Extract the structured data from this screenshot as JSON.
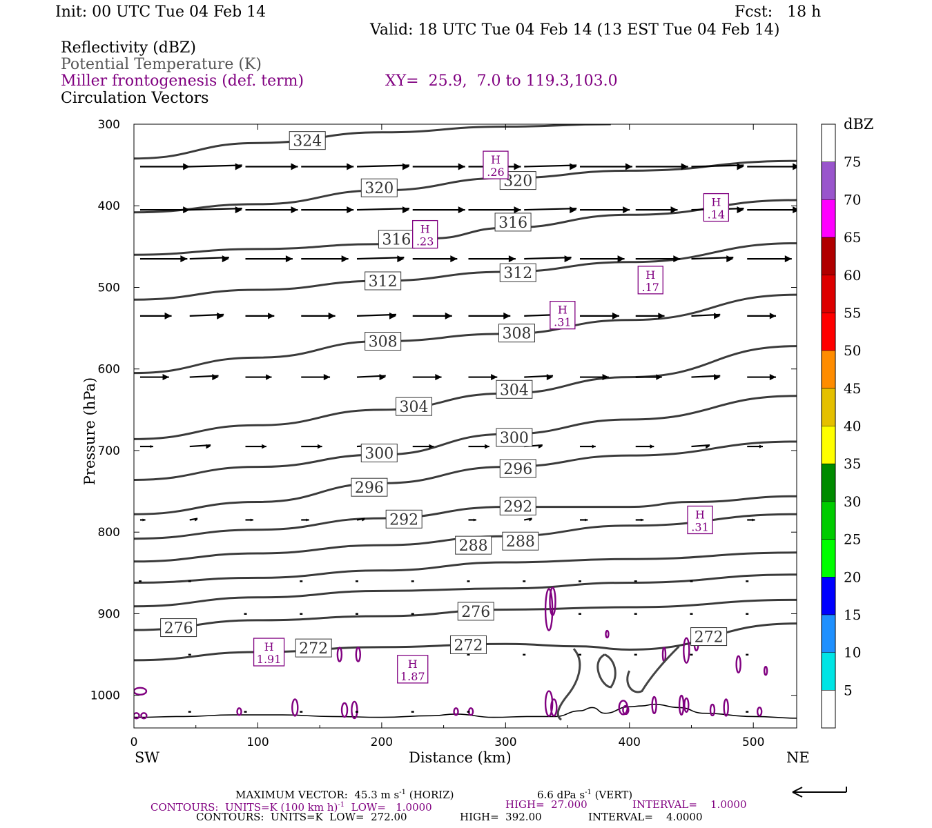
{
  "header": {
    "init": "Init: 00 UTC Tue 04 Feb 14",
    "fcst": "Fcst:   18 h",
    "valid": "Valid: 18 UTC Tue 04 Feb 14 (13 EST Tue 04 Feb 14)"
  },
  "fields": {
    "reflectivity": "Reflectivity (dBZ)",
    "theta": "Potential Temperature (K)",
    "frontogenesis": "Miller frontogenesis (def. term)",
    "xy": "XY=  25.9,  7.0 to 119.3,103.0",
    "vectors": "Circulation Vectors"
  },
  "colors": {
    "theta_line": "#3a3a3a",
    "frontogenesis": "#800080",
    "vectors": "#000000"
  },
  "chart_data": {
    "type": "line",
    "xlabel": "Distance (km)",
    "ylabel": "Pressure (hPa)",
    "xlim": [
      0,
      535
    ],
    "ylim": [
      1040,
      300
    ],
    "x_ticks": [
      "0",
      "100",
      "200",
      "300",
      "400",
      "500"
    ],
    "y_ticks": [
      "300",
      "400",
      "500",
      "600",
      "700",
      "800",
      "900",
      "1000"
    ],
    "x_end_labels": {
      "left": "SW",
      "right": "NE"
    },
    "isentropes": [
      {
        "theta": 324,
        "label": "324",
        "points": [
          [
            0,
            342
          ],
          [
            100,
            323
          ],
          [
            200,
            310
          ],
          [
            300,
            303
          ],
          [
            385,
            300
          ]
        ],
        "labels_at": [
          [
            140,
            320
          ]
        ]
      },
      {
        "theta": 320,
        "label": "320",
        "points": [
          [
            0,
            408
          ],
          [
            100,
            398
          ],
          [
            200,
            381
          ],
          [
            300,
            366
          ],
          [
            400,
            357
          ],
          [
            535,
            345
          ]
        ],
        "labels_at": [
          [
            198,
            378
          ],
          [
            310,
            369
          ]
        ]
      },
      {
        "theta": 316,
        "label": "316",
        "points": [
          [
            0,
            460
          ],
          [
            100,
            453
          ],
          [
            200,
            447
          ],
          [
            240,
            440
          ],
          [
            300,
            427
          ],
          [
            400,
            411
          ],
          [
            535,
            393
          ]
        ],
        "labels_at": [
          [
            212,
            441
          ],
          [
            306,
            420
          ]
        ]
      },
      {
        "theta": 312,
        "label": "312",
        "points": [
          [
            0,
            515
          ],
          [
            100,
            503
          ],
          [
            200,
            492
          ],
          [
            300,
            481
          ],
          [
            400,
            469
          ],
          [
            535,
            446
          ]
        ],
        "labels_at": [
          [
            201,
            492
          ],
          [
            310,
            482
          ]
        ]
      },
      {
        "theta": 308,
        "label": "308",
        "points": [
          [
            0,
            605
          ],
          [
            100,
            586
          ],
          [
            200,
            566
          ],
          [
            300,
            557
          ],
          [
            400,
            540
          ],
          [
            535,
            509
          ]
        ],
        "labels_at": [
          [
            201,
            566
          ],
          [
            309,
            556
          ]
        ]
      },
      {
        "theta": 304,
        "label": "304",
        "points": [
          [
            0,
            686
          ],
          [
            100,
            669
          ],
          [
            200,
            650
          ],
          [
            300,
            630
          ],
          [
            400,
            610
          ],
          [
            535,
            572
          ]
        ],
        "labels_at": [
          [
            226,
            646
          ],
          [
            307,
            625
          ]
        ]
      },
      {
        "theta": 300,
        "label": "300",
        "points": [
          [
            0,
            736
          ],
          [
            100,
            720
          ],
          [
            200,
            705
          ],
          [
            300,
            680
          ],
          [
            400,
            662
          ],
          [
            535,
            633
          ]
        ],
        "labels_at": [
          [
            198,
            703
          ],
          [
            307,
            684
          ]
        ]
      },
      {
        "theta": 296,
        "label": "296",
        "points": [
          [
            0,
            778
          ],
          [
            100,
            763
          ],
          [
            200,
            740
          ],
          [
            300,
            720
          ],
          [
            400,
            706
          ],
          [
            535,
            689
          ]
        ],
        "labels_at": [
          [
            190,
            745
          ],
          [
            310,
            722
          ]
        ]
      },
      {
        "theta": 292,
        "label": "292",
        "points": [
          [
            0,
            808
          ],
          [
            100,
            797
          ],
          [
            200,
            783
          ],
          [
            300,
            769
          ],
          [
            400,
            769
          ],
          [
            450,
            763
          ],
          [
            535,
            756
          ]
        ],
        "labels_at": [
          [
            218,
            784
          ],
          [
            310,
            768
          ]
        ]
      },
      {
        "theta": 288,
        "label": "288",
        "points": [
          [
            0,
            836
          ],
          [
            100,
            826
          ],
          [
            200,
            816
          ],
          [
            300,
            805
          ],
          [
            400,
            792
          ],
          [
            535,
            778
          ]
        ],
        "labels_at": [
          [
            274,
            816
          ],
          [
            312,
            811
          ]
        ]
      },
      {
        "theta": 284,
        "label": "",
        "points": [
          [
            0,
            862
          ],
          [
            100,
            856
          ],
          [
            200,
            847
          ],
          [
            300,
            837
          ],
          [
            400,
            833
          ],
          [
            535,
            825
          ]
        ],
        "labels_at": []
      },
      {
        "theta": 280,
        "label": "",
        "points": [
          [
            0,
            891
          ],
          [
            100,
            880
          ],
          [
            200,
            872
          ],
          [
            300,
            869
          ],
          [
            400,
            862
          ],
          [
            535,
            852
          ]
        ],
        "labels_at": []
      },
      {
        "theta": 276,
        "label": "276",
        "points": [
          [
            0,
            920
          ],
          [
            100,
            908
          ],
          [
            200,
            903
          ],
          [
            300,
            895
          ],
          [
            400,
            892
          ],
          [
            535,
            883
          ]
        ],
        "labels_at": [
          [
            36,
            917
          ],
          [
            276,
            897
          ]
        ]
      },
      {
        "theta": 272,
        "label": "272",
        "points": [
          [
            0,
            957
          ],
          [
            100,
            947
          ],
          [
            200,
            941
          ],
          [
            300,
            937
          ],
          [
            360,
            940
          ],
          [
            400,
            944
          ],
          [
            535,
            912
          ]
        ],
        "labels_at": [
          [
            145,
            942
          ],
          [
            270,
            938
          ],
          [
            464,
            928
          ]
        ]
      }
    ],
    "frontogenesis_maxima": [
      {
        "x": 292,
        "p": 350,
        "label": "H",
        "value": ".26"
      },
      {
        "x": 235,
        "p": 435,
        "label": "H",
        "value": ".23"
      },
      {
        "x": 470,
        "p": 402,
        "label": "H",
        "value": ".14"
      },
      {
        "x": 417,
        "p": 491,
        "label": "H",
        "value": ".17"
      },
      {
        "x": 346,
        "p": 534,
        "label": "H",
        "value": ".31"
      },
      {
        "x": 457,
        "p": 785,
        "label": "H",
        "value": ".31"
      },
      {
        "x": 109,
        "p": 947,
        "label": "H",
        "value": "1.91"
      },
      {
        "x": 225,
        "p": 968,
        "label": "H",
        "value": "1.87"
      }
    ],
    "vector_rows": [
      {
        "p": 352,
        "u": [
          38,
          40,
          40,
          40,
          40,
          40,
          40,
          40,
          40,
          40,
          40,
          40
        ]
      },
      {
        "p": 405,
        "u": [
          38,
          40,
          40,
          40,
          40,
          40,
          40,
          40,
          38,
          32,
          40,
          40
        ]
      },
      {
        "p": 465,
        "u": [
          36,
          30,
          36,
          36,
          36,
          34,
          36,
          36,
          34,
          34,
          32,
          34
        ]
      },
      {
        "p": 535,
        "u": [
          24,
          26,
          22,
          26,
          30,
          30,
          32,
          28,
          30,
          22,
          22,
          22
        ]
      },
      {
        "p": 610,
        "u": [
          22,
          22,
          20,
          22,
          22,
          22,
          22,
          22,
          22,
          20,
          22,
          22
        ]
      },
      {
        "p": 695,
        "u": [
          10,
          16,
          16,
          16,
          16,
          16,
          16,
          14,
          12,
          14,
          14,
          12
        ]
      },
      {
        "p": 785,
        "u": [
          4,
          6,
          6,
          6,
          6,
          6,
          6,
          6,
          6,
          6,
          6,
          6
        ]
      }
    ],
    "vector_x": [
      5,
      45,
      90,
      135,
      180,
      225,
      270,
      315,
      360,
      405,
      450,
      495
    ],
    "ground_profile": [
      [
        0,
        1027
      ],
      [
        40,
        1026
      ],
      [
        80,
        1024
      ],
      [
        120,
        1024
      ],
      [
        160,
        1026
      ],
      [
        200,
        1027
      ],
      [
        240,
        1025
      ],
      [
        260,
        1023
      ],
      [
        290,
        1027
      ],
      [
        320,
        1026
      ],
      [
        340,
        1026
      ],
      [
        360,
        1019
      ],
      [
        370,
        1015
      ],
      [
        380,
        1022
      ],
      [
        400,
        1014
      ],
      [
        410,
        1013
      ],
      [
        420,
        1011
      ],
      [
        440,
        1015
      ],
      [
        460,
        1022
      ],
      [
        500,
        1026
      ],
      [
        535,
        1028
      ]
    ],
    "colorbar": {
      "unit": "dBZ",
      "levels": [
        "5",
        "10",
        "15",
        "20",
        "25",
        "30",
        "35",
        "40",
        "45",
        "50",
        "55",
        "60",
        "65",
        "70",
        "75"
      ],
      "colors": [
        "#ffffff",
        "#00e5e5",
        "#1e90ff",
        "#0000ff",
        "#00ff00",
        "#00cc00",
        "#008b00",
        "#ffff00",
        "#e5c000",
        "#ff8c00",
        "#ff0000",
        "#dd0000",
        "#b00000",
        "#ff00ff",
        "#9955cc",
        "#ffffff"
      ]
    }
  },
  "footer": {
    "max_vector": "MAXIMUM VECTOR:  45.3 m s",
    "max_vector_exp": "-1",
    "max_vector_horiz": " (HORIZ)",
    "max_vector_vert": "6.6 dPa s",
    "max_vector_vert_exp": "-1",
    "max_vector_vert_tail": " (VERT)",
    "contours1_a": "CONTOURS:  UNITS=K (100 km h)",
    "contours1_exp": "-1",
    "contours1_b": "  LOW=   1.0000",
    "contours1_high": "HIGH=  27.000",
    "contours1_int": "INTERVAL=    1.0000",
    "contours2_a": "CONTOURS:  UNITS=K  LOW=  272.00",
    "contours2_high": "HIGH=  392.00",
    "contours2_int": "INTERVAL=    4.0000"
  }
}
